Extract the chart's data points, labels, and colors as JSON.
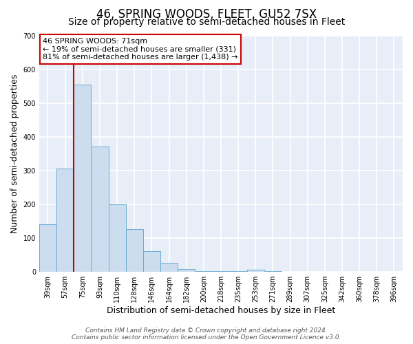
{
  "title": "46, SPRING WOODS, FLEET, GU52 7SX",
  "subtitle": "Size of property relative to semi-detached houses in Fleet",
  "xlabel": "Distribution of semi-detached houses by size in Fleet",
  "ylabel": "Number of semi-detached properties",
  "bar_labels": [
    "39sqm",
    "57sqm",
    "75sqm",
    "93sqm",
    "110sqm",
    "128sqm",
    "146sqm",
    "164sqm",
    "182sqm",
    "200sqm",
    "218sqm",
    "235sqm",
    "253sqm",
    "271sqm",
    "289sqm",
    "307sqm",
    "325sqm",
    "342sqm",
    "360sqm",
    "378sqm",
    "396sqm"
  ],
  "bar_values": [
    140,
    305,
    555,
    370,
    200,
    125,
    60,
    25,
    8,
    2,
    1,
    1,
    6,
    1,
    0,
    0,
    0,
    0,
    0,
    0,
    0
  ],
  "bar_color": "#ccddf0",
  "bar_edge_color": "#6aaad4",
  "vline_color": "#cc0000",
  "annotation_text": "46 SPRING WOODS: 71sqm\n← 19% of semi-detached houses are smaller (331)\n81% of semi-detached houses are larger (1,438) →",
  "annotation_box_color": "#ffffff",
  "annotation_box_edge": "#cc0000",
  "ylim": [
    0,
    700
  ],
  "yticks": [
    0,
    100,
    200,
    300,
    400,
    500,
    600,
    700
  ],
  "fig_bg_color": "#ffffff",
  "plot_bg_color": "#e8eef8",
  "grid_color": "#ffffff",
  "title_fontsize": 12,
  "subtitle_fontsize": 10,
  "axis_label_fontsize": 9,
  "tick_fontsize": 7,
  "footer_fontsize": 6.5,
  "footer_line1": "Contains HM Land Registry data © Crown copyright and database right 2024.",
  "footer_line2": "Contains public sector information licensed under the Open Government Licence v3.0."
}
